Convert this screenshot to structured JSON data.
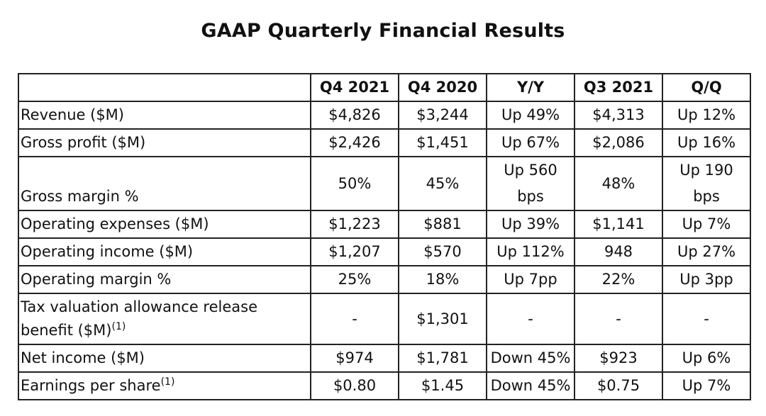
{
  "title": "GAAP Quarterly Financial Results",
  "columns": [
    "",
    "Q4 2021",
    "Q4 2020",
    "Y/Y",
    "Q3 2021",
    "Q/Q"
  ],
  "rows": [
    {
      "label": "Revenue ($M)",
      "cells": [
        "$4,826",
        "$3,244",
        "Up 49%",
        "$4,313",
        "Up 12%"
      ]
    },
    {
      "label": "Gross profit ($M)",
      "cells": [
        "$2,426",
        "$1,451",
        "Up 67%",
        "$2,086",
        "Up 16%"
      ]
    },
    {
      "label": "Gross margin %",
      "cells": [
        "50%",
        "45%",
        "Up 560 bps",
        "48%",
        "Up 190 bps"
      ]
    },
    {
      "label": "Operating expenses ($M)",
      "cells": [
        "$1,223",
        "$881",
        "Up 39%",
        "$1,141",
        "Up 7%"
      ]
    },
    {
      "label": "Operating income ($M)",
      "cells": [
        "$1,207",
        "$570",
        "Up 112%",
        "948",
        "Up 27%"
      ]
    },
    {
      "label": "Operating margin %",
      "cells": [
        "25%",
        "18%",
        "Up 7pp",
        "22%",
        "Up 3pp"
      ]
    },
    {
      "label": "Tax valuation allowance release benefit ($M)",
      "footnote": "(1)",
      "cells": [
        "-",
        "$1,301",
        "-",
        "-",
        "-"
      ]
    },
    {
      "label": "Net income ($M)",
      "cells": [
        "$974",
        "$1,781",
        "Down 45%",
        "$923",
        "Up 6%"
      ]
    },
    {
      "label": "Earnings per share",
      "footnote": "(1)",
      "cells": [
        "$0.80",
        "$1.45",
        "Down 45%",
        "$0.75",
        "Up 7%"
      ]
    }
  ],
  "gross_margin_split": {
    "yy_line1": "Up 560",
    "yy_line2": "bps",
    "qq_line1": "Up 190",
    "qq_line2": "bps"
  },
  "tax_label_split": {
    "line1": "Tax valuation allowance release",
    "line2": "benefit ($M)"
  }
}
